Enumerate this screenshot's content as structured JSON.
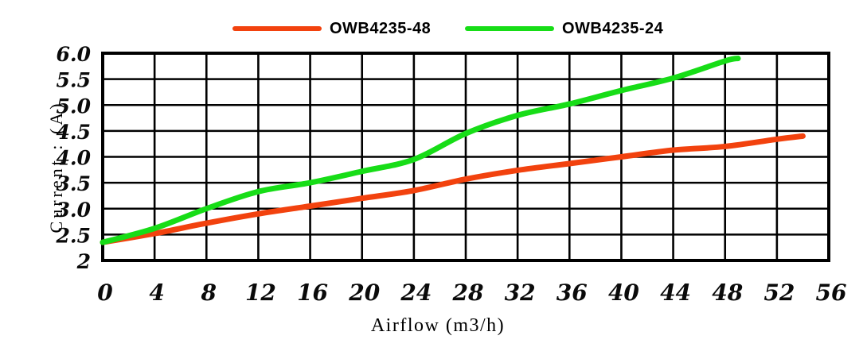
{
  "legend": {
    "items": [
      {
        "label": "OWB4235-48",
        "color": "#f2420e"
      },
      {
        "label": "OWB4235-24",
        "color": "#17dd17"
      }
    ]
  },
  "chart_data": {
    "type": "line",
    "title": "",
    "xlabel": "Airflow (m3/h)",
    "ylabel": "Current : (A)",
    "xlim": [
      0,
      56
    ],
    "ylim": [
      2,
      6
    ],
    "grid": true,
    "grid_color": "#000000",
    "legend_position": "top",
    "x_ticks": [
      0,
      4,
      8,
      12,
      16,
      20,
      24,
      28,
      32,
      36,
      40,
      44,
      48,
      52,
      56
    ],
    "x_tick_labels": [
      "0",
      "4",
      "8",
      "12",
      "16",
      "20",
      "24",
      "28",
      "32",
      "36",
      "40",
      "44",
      "48",
      "52",
      "56"
    ],
    "y_ticks": [
      6,
      5.5,
      5,
      4.5,
      4,
      3.5,
      3,
      2.5,
      2
    ],
    "y_tick_labels": [
      "6.0",
      "5.5",
      "5.0",
      "4.5",
      "4.0",
      "3.5",
      "3.0",
      "2.5",
      "2"
    ],
    "series": [
      {
        "name": "OWB4235-48",
        "color": "#f2420e",
        "x": [
          0,
          4,
          8,
          12,
          16,
          20,
          24,
          28,
          32,
          36,
          40,
          44,
          48,
          52,
          54
        ],
        "y": [
          2.35,
          2.52,
          2.72,
          2.9,
          3.05,
          3.2,
          3.35,
          3.57,
          3.74,
          3.87,
          4.0,
          4.13,
          4.2,
          4.34,
          4.4
        ]
      },
      {
        "name": "OWB4235-24",
        "color": "#17dd17",
        "x": [
          0,
          4,
          8,
          12,
          16,
          20,
          24,
          28,
          32,
          36,
          40,
          44,
          48,
          49
        ],
        "y": [
          2.35,
          2.62,
          3.0,
          3.33,
          3.5,
          3.72,
          3.95,
          4.45,
          4.8,
          5.02,
          5.28,
          5.52,
          5.85,
          5.9
        ]
      }
    ]
  }
}
